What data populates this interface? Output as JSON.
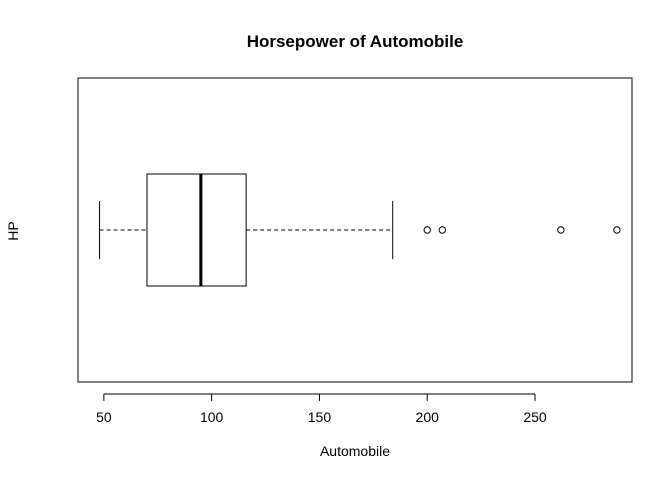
{
  "chart_data": {
    "type": "boxplot",
    "orientation": "horizontal",
    "title": "Horsepower of Automobile",
    "xlabel": "Automobile",
    "ylabel": "HP",
    "xlim": [
      38,
      295
    ],
    "xticks": [
      50,
      100,
      150,
      200,
      250
    ],
    "grid": false,
    "legend": false,
    "box": {
      "whisker_low": 48,
      "q1": 70,
      "median": 95,
      "q3": 116,
      "whisker_high": 184,
      "outliers": [
        200,
        207,
        262,
        288
      ]
    }
  }
}
